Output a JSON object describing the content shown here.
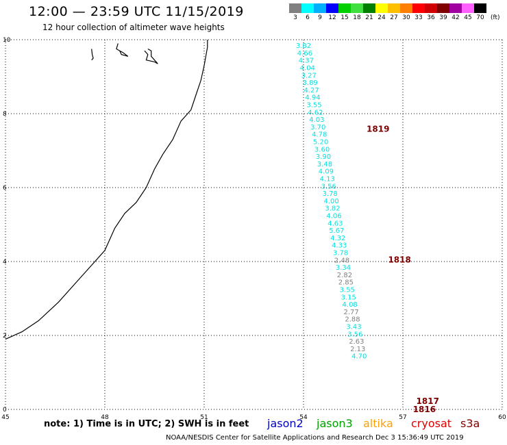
{
  "title": "12:00 — 23:59 UTC 11/15/2019",
  "subtitle": "12 hour collection of altimeter wave heights",
  "colorbar": {
    "labels": [
      "3",
      "6",
      "9",
      "12",
      "15",
      "18",
      "21",
      "24",
      "27",
      "30",
      "33",
      "36",
      "39",
      "42",
      "45",
      "70"
    ],
    "unit": "(ft)",
    "colors": [
      "#808080",
      "#00ffff",
      "#00b0ff",
      "#0000ff",
      "#00d000",
      "#40e040",
      "#008000",
      "#ffff00",
      "#ffc000",
      "#ff8000",
      "#ff0000",
      "#d00000",
      "#800000",
      "#a000a0",
      "#ff60ff",
      "#000000"
    ]
  },
  "chart_data": {
    "type": "scatter",
    "xlim": [
      45,
      60
    ],
    "ylim": [
      0,
      10
    ],
    "x_ticks": [
      "45",
      "48",
      "51",
      "54",
      "57",
      "60"
    ],
    "y_ticks": [
      "0",
      "2",
      "4",
      "6",
      "8",
      "10"
    ],
    "observations": [
      {
        "lon": 54.0,
        "lat": 9.85,
        "swh": "3.82",
        "color": "#00e0e0"
      },
      {
        "lon": 54.04,
        "lat": 9.65,
        "swh": "4.66",
        "color": "#00e0e0"
      },
      {
        "lon": 54.08,
        "lat": 9.45,
        "swh": "4.37",
        "color": "#00e0e0"
      },
      {
        "lon": 54.12,
        "lat": 9.25,
        "swh": "4.04",
        "color": "#00e0e0"
      },
      {
        "lon": 54.16,
        "lat": 9.05,
        "swh": "3.27",
        "color": "#00e0e0"
      },
      {
        "lon": 54.2,
        "lat": 8.85,
        "swh": "3.89",
        "color": "#00e0e0"
      },
      {
        "lon": 54.24,
        "lat": 8.65,
        "swh": "4.27",
        "color": "#00e0e0"
      },
      {
        "lon": 54.28,
        "lat": 8.45,
        "swh": "4.94",
        "color": "#00e0e0"
      },
      {
        "lon": 54.32,
        "lat": 8.25,
        "swh": "3.55",
        "color": "#00e0e0"
      },
      {
        "lon": 54.36,
        "lat": 8.05,
        "swh": "4.62",
        "color": "#00e0e0"
      },
      {
        "lon": 54.4,
        "lat": 7.85,
        "swh": "4.03",
        "color": "#00e0e0"
      },
      {
        "lon": 54.44,
        "lat": 7.65,
        "swh": "3.70",
        "color": "#00e0e0"
      },
      {
        "lon": 54.48,
        "lat": 7.45,
        "swh": "4.78",
        "color": "#00e0e0"
      },
      {
        "lon": 54.52,
        "lat": 7.25,
        "swh": "5.20",
        "color": "#00e0e0"
      },
      {
        "lon": 54.56,
        "lat": 7.05,
        "swh": "3.60",
        "color": "#00e0e0"
      },
      {
        "lon": 54.6,
        "lat": 6.85,
        "swh": "3.90",
        "color": "#00e0e0"
      },
      {
        "lon": 54.64,
        "lat": 6.65,
        "swh": "3.48",
        "color": "#00e0e0"
      },
      {
        "lon": 54.68,
        "lat": 6.45,
        "swh": "4.09",
        "color": "#00e0e0"
      },
      {
        "lon": 54.72,
        "lat": 6.25,
        "swh": "4.13",
        "color": "#00e0e0"
      },
      {
        "lon": 54.76,
        "lat": 6.05,
        "swh": "3.56",
        "color": "#00e0e0"
      },
      {
        "lon": 54.8,
        "lat": 5.85,
        "swh": "3.78",
        "color": "#00e0e0"
      },
      {
        "lon": 54.84,
        "lat": 5.65,
        "swh": "4.00",
        "color": "#00e0e0"
      },
      {
        "lon": 54.88,
        "lat": 5.45,
        "swh": "3.82",
        "color": "#00e0e0"
      },
      {
        "lon": 54.92,
        "lat": 5.25,
        "swh": "4.06",
        "color": "#00e0e0"
      },
      {
        "lon": 54.96,
        "lat": 5.05,
        "swh": "4.63",
        "color": "#00e0e0"
      },
      {
        "lon": 55.0,
        "lat": 4.85,
        "swh": "5.67",
        "color": "#00e0e0"
      },
      {
        "lon": 55.04,
        "lat": 4.65,
        "swh": "4.32",
        "color": "#00e0e0"
      },
      {
        "lon": 55.08,
        "lat": 4.45,
        "swh": "4.33",
        "color": "#00e0e0"
      },
      {
        "lon": 55.12,
        "lat": 4.25,
        "swh": "3.78",
        "color": "#00e0e0"
      },
      {
        "lon": 55.16,
        "lat": 4.05,
        "swh": "2.48",
        "color": "#808080"
      },
      {
        "lon": 55.2,
        "lat": 3.85,
        "swh": "3.34",
        "color": "#00e0e0"
      },
      {
        "lon": 55.24,
        "lat": 3.65,
        "swh": "2.82",
        "color": "#808080"
      },
      {
        "lon": 55.28,
        "lat": 3.45,
        "swh": "2.85",
        "color": "#808080"
      },
      {
        "lon": 55.32,
        "lat": 3.25,
        "swh": "3.55",
        "color": "#00e0e0"
      },
      {
        "lon": 55.36,
        "lat": 3.05,
        "swh": "3.15",
        "color": "#00e0e0"
      },
      {
        "lon": 55.4,
        "lat": 2.85,
        "swh": "4.08",
        "color": "#00e0e0"
      },
      {
        "lon": 55.44,
        "lat": 2.65,
        "swh": "2.77",
        "color": "#808080"
      },
      {
        "lon": 55.48,
        "lat": 2.45,
        "swh": "2.88",
        "color": "#808080"
      },
      {
        "lon": 55.52,
        "lat": 2.25,
        "swh": "3.43",
        "color": "#00e0e0"
      },
      {
        "lon": 55.56,
        "lat": 2.05,
        "swh": "3.56",
        "color": "#00e0e0"
      },
      {
        "lon": 55.6,
        "lat": 1.85,
        "swh": "2.63",
        "color": "#808080"
      },
      {
        "lon": 55.64,
        "lat": 1.65,
        "swh": "2.13",
        "color": "#808080"
      },
      {
        "lon": 55.68,
        "lat": 1.45,
        "swh": "4.70",
        "color": "#00e0e0"
      }
    ],
    "time_labels": [
      {
        "lon": 56.25,
        "lat": 7.58,
        "text": "1819"
      },
      {
        "lon": 56.9,
        "lat": 4.05,
        "text": "1818"
      },
      {
        "lon": 57.75,
        "lat": 0.22,
        "text": "1817"
      },
      {
        "lon": 57.65,
        "lat": -0.0,
        "text": "1816"
      }
    ],
    "coastline": [
      [
        45.0,
        1.9
      ],
      [
        45.5,
        2.1
      ],
      [
        46.0,
        2.4
      ],
      [
        46.6,
        2.9
      ],
      [
        47.2,
        3.5
      ],
      [
        47.6,
        3.9
      ],
      [
        48.0,
        4.3
      ],
      [
        48.3,
        4.9
      ],
      [
        48.6,
        5.3
      ],
      [
        48.95,
        5.6
      ],
      [
        49.25,
        6.0
      ],
      [
        49.5,
        6.5
      ],
      [
        49.75,
        6.9
      ],
      [
        50.05,
        7.3
      ],
      [
        50.3,
        7.8
      ],
      [
        50.6,
        8.1
      ],
      [
        50.75,
        8.5
      ],
      [
        50.9,
        8.9
      ],
      [
        51.0,
        9.3
      ],
      [
        51.1,
        9.8
      ],
      [
        51.1,
        10.0
      ]
    ],
    "islands": [
      [
        [
          47.6,
          9.75
        ],
        [
          47.62,
          9.6
        ],
        [
          47.65,
          9.5
        ],
        [
          47.6,
          9.45
        ]
      ],
      [
        [
          48.4,
          9.9
        ],
        [
          48.35,
          9.75
        ],
        [
          48.55,
          9.65
        ],
        [
          48.7,
          9.55
        ],
        [
          48.5,
          9.6
        ],
        [
          48.45,
          9.7
        ]
      ],
      [
        [
          49.2,
          9.7
        ],
        [
          49.3,
          9.6
        ],
        [
          49.25,
          9.45
        ],
        [
          49.5,
          9.4
        ],
        [
          49.6,
          9.35
        ],
        [
          49.5,
          9.45
        ],
        [
          49.4,
          9.55
        ],
        [
          49.4,
          9.7
        ],
        [
          49.3,
          9.75
        ]
      ]
    ]
  },
  "footer": {
    "note": "note: 1) Time is in UTC; 2) SWH is in feet",
    "missions": [
      {
        "name": "jason2",
        "color": "#0000c0"
      },
      {
        "name": "jason3",
        "color": "#00a000"
      },
      {
        "name": "altika",
        "color": "#ffa000"
      },
      {
        "name": "cryosat",
        "color": "#e00000"
      },
      {
        "name": "s3a",
        "color": "#800000"
      }
    ],
    "credit": "NOAA/NESDIS Center for Satellite Applications and Research     Dec  3 15:36:49 UTC 2019"
  }
}
